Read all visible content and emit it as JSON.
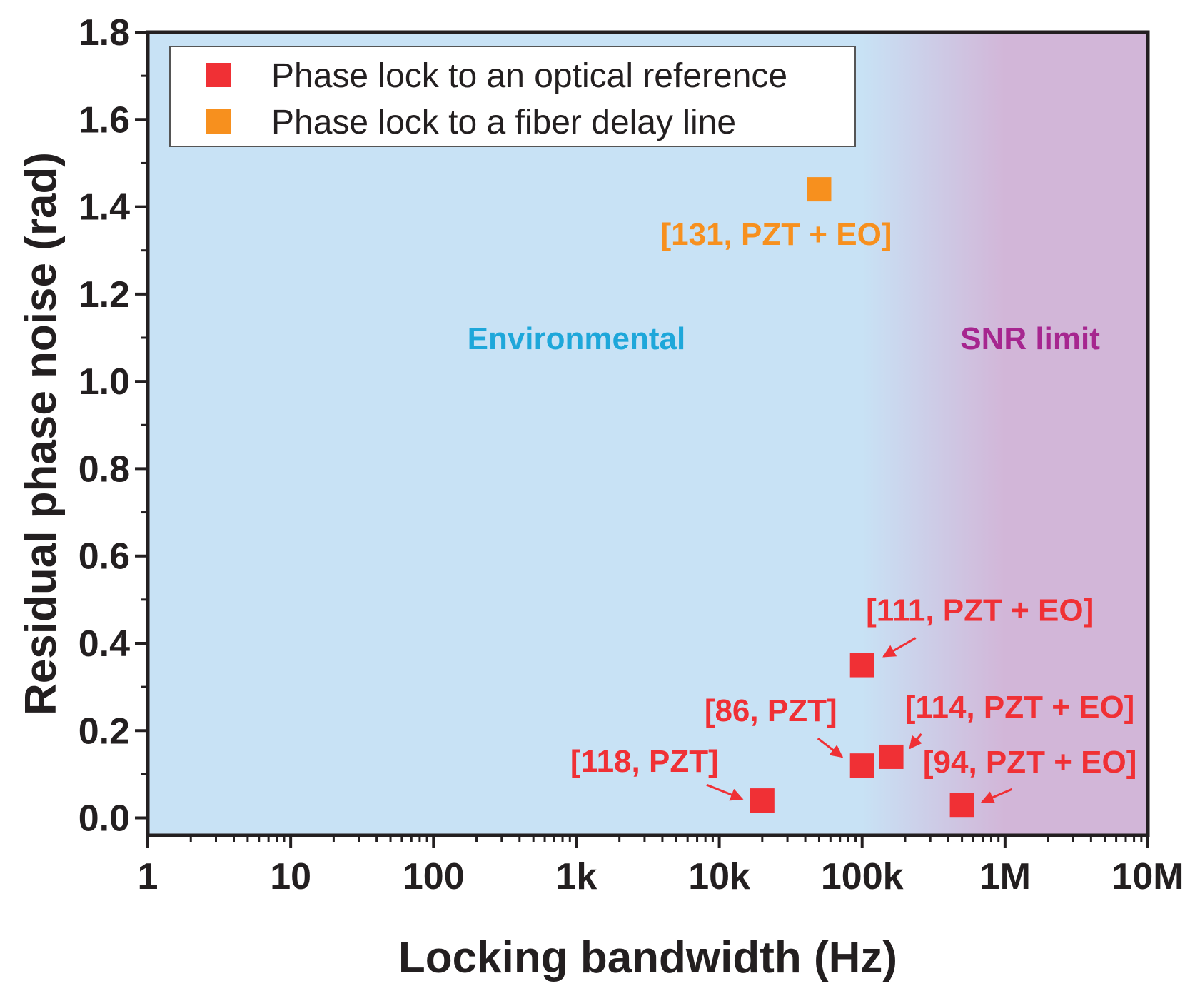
{
  "chart_data": {
    "type": "scatter",
    "title": "",
    "xlabel": "Locking bandwidth (Hz)",
    "ylabel": "Residual phase noise (rad)",
    "xscale": "log",
    "xlim": [
      1,
      10000000
    ],
    "ylim": [
      -0.04,
      1.8
    ],
    "xticks": [
      {
        "value": 1,
        "label": "1"
      },
      {
        "value": 10,
        "label": "10"
      },
      {
        "value": 100,
        "label": "100"
      },
      {
        "value": 1000,
        "label": "1k"
      },
      {
        "value": 10000,
        "label": "10k"
      },
      {
        "value": 100000,
        "label": "100k"
      },
      {
        "value": 1000000,
        "label": "1M"
      },
      {
        "value": 10000000,
        "label": "10M"
      }
    ],
    "yticks": [
      {
        "value": 0.0,
        "label": "0.0"
      },
      {
        "value": 0.2,
        "label": "0.2"
      },
      {
        "value": 0.4,
        "label": "0.4"
      },
      {
        "value": 0.6,
        "label": "0.6"
      },
      {
        "value": 0.8,
        "label": "0.8"
      },
      {
        "value": 1.0,
        "label": "1.0"
      },
      {
        "value": 1.2,
        "label": "1.2"
      },
      {
        "value": 1.4,
        "label": "1.4"
      },
      {
        "value": 1.6,
        "label": "1.6"
      },
      {
        "value": 1.8,
        "label": "1.8"
      }
    ],
    "legend_position": "top-left",
    "background_gradient": {
      "from_color": "#c8e2f5",
      "to_color": "#d2b6d8",
      "start_x": 100000,
      "end_x": 1000000
    },
    "region_labels": [
      {
        "text": "Environmental",
        "color": "#1ea7da",
        "x": 1000,
        "y": 1.1
      },
      {
        "text": "SNR limit",
        "color": "#a6268f",
        "x": 1500000,
        "y": 1.1
      }
    ],
    "series": [
      {
        "name": "Phase lock to an optical reference",
        "color": "#f03035",
        "marker": "square",
        "points": [
          {
            "x": 20000,
            "y": 0.04,
            "label": "[118, PZT]"
          },
          {
            "x": 100000,
            "y": 0.12,
            "label": "[86, PZT]"
          },
          {
            "x": 100000,
            "y": 0.35,
            "label": "[111, PZT + EO]"
          },
          {
            "x": 160000,
            "y": 0.14,
            "label": "[114, PZT + EO]"
          },
          {
            "x": 500000,
            "y": 0.03,
            "label": "[94, PZT + EO]"
          }
        ]
      },
      {
        "name": "Phase lock to a fiber delay line",
        "color": "#f7901e",
        "marker": "square",
        "points": [
          {
            "x": 50000,
            "y": 1.44,
            "label": "[131, PZT + EO]"
          }
        ]
      }
    ]
  }
}
